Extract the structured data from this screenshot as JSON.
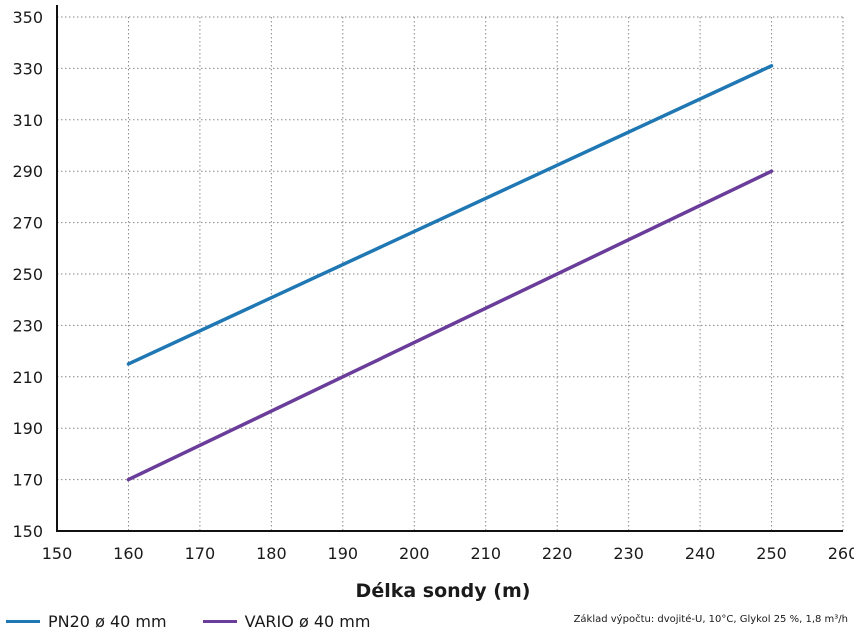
{
  "chart_data": {
    "type": "line",
    "title": "",
    "xlabel": "Délka sondy (m)",
    "ylabel": "",
    "xlim": [
      150,
      260
    ],
    "ylim": [
      150,
      350
    ],
    "xticks": [
      150,
      160,
      170,
      180,
      190,
      200,
      210,
      220,
      230,
      240,
      250,
      260
    ],
    "yticks": [
      150,
      170,
      190,
      210,
      230,
      250,
      270,
      290,
      310,
      330,
      350
    ],
    "grid": true,
    "legend_position": "bottom-left",
    "series": [
      {
        "name": "PN20 ø 40 mm",
        "color": "#1f77b4",
        "x": [
          160,
          250
        ],
        "y": [
          215,
          331
        ]
      },
      {
        "name": "VARIO ø 40 mm",
        "color": "#6a3d9a",
        "x": [
          160,
          250
        ],
        "y": [
          170,
          290
        ]
      }
    ],
    "note": "Základ výpočtu: dvojité-U, 10°C, Glykol 25 %, 1,8 m³/h"
  }
}
